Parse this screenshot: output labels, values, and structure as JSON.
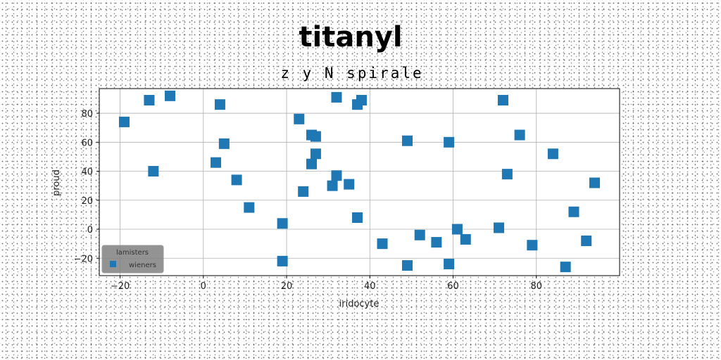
{
  "chart_data": {
    "type": "scatter",
    "title": "titanyl",
    "subtitle": "z y N spirale",
    "xlabel": "iridocyte",
    "ylabel": "proud",
    "xlim": [
      -25,
      100
    ],
    "ylim": [
      -32,
      97
    ],
    "xticks": [
      -20,
      0,
      20,
      40,
      60,
      80
    ],
    "yticks": [
      -20,
      0,
      20,
      40,
      60,
      80
    ],
    "grid": true,
    "marker": "square",
    "legend": {
      "title": "lamisters",
      "placement": "bottom-left"
    },
    "series": [
      {
        "name": "wieners",
        "color": "#1f77b4",
        "points": [
          [
            -19,
            74
          ],
          [
            -13,
            89
          ],
          [
            -12,
            40
          ],
          [
            -8,
            92
          ],
          [
            3,
            46
          ],
          [
            4,
            86
          ],
          [
            5,
            59
          ],
          [
            8,
            34
          ],
          [
            11,
            15
          ],
          [
            19,
            4
          ],
          [
            19,
            -22
          ],
          [
            23,
            76
          ],
          [
            24,
            26
          ],
          [
            26,
            65
          ],
          [
            26,
            45
          ],
          [
            27,
            64
          ],
          [
            27,
            52
          ],
          [
            31,
            30
          ],
          [
            32,
            91
          ],
          [
            32,
            37
          ],
          [
            35,
            31
          ],
          [
            37,
            86
          ],
          [
            37,
            8
          ],
          [
            38,
            89
          ],
          [
            43,
            -10
          ],
          [
            49,
            61
          ],
          [
            49,
            -25
          ],
          [
            52,
            -4
          ],
          [
            56,
            -9
          ],
          [
            59,
            60
          ],
          [
            59,
            -24
          ],
          [
            61,
            0
          ],
          [
            63,
            -7
          ],
          [
            71,
            1
          ],
          [
            72,
            89
          ],
          [
            73,
            38
          ],
          [
            76,
            65
          ],
          [
            79,
            -11
          ],
          [
            84,
            52
          ],
          [
            87,
            -26
          ],
          [
            89,
            12
          ],
          [
            92,
            -8
          ],
          [
            94,
            32
          ]
        ]
      }
    ]
  }
}
